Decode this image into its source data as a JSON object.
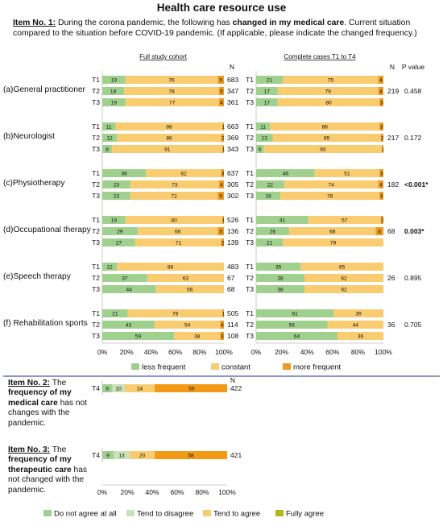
{
  "title": "Health care resource use",
  "item1": {
    "label": "Item No. 1:",
    "text_a": " During the corona pandemic, the following has ",
    "text_bold": "changed in my medical care",
    "text_b": ". Current situation compared to the situation before COVID-19 pandemic. (If applicable, please indicate the changed frequency.)"
  },
  "headers": {
    "left": "Full study cohort",
    "right": "Complete cases T1 to T4",
    "n": "N",
    "pvalue": "P value"
  },
  "x_ticks": [
    "0%",
    "20%",
    "40%",
    "60%",
    "80%",
    "100%"
  ],
  "legend1": [
    "less frequent",
    "constant",
    "more frequent"
  ],
  "item2": {
    "label": "Item No. 2:",
    "text_a": " The ",
    "text_bold": "frequency of my medical care",
    "text_b": " has not changes with the pandemic."
  },
  "item3": {
    "label": "Item No. 3:",
    "text_a": " The ",
    "text_bold": "frequency of my therapeutic care",
    "text_b": " has not changed with the pandemic."
  },
  "legend2": [
    "Do not agree at all",
    "Tend to disagree",
    "Tend to agree",
    "Fully agree"
  ],
  "colors": {
    "less": "#9fd08e",
    "constant": "#f9cc70",
    "more": "#ef9a1e",
    "disagree_full": "#9fd08e",
    "tend_disagree": "#c8e3b8",
    "tend_agree": "#f9cc70",
    "fully_agree": "#b3b818",
    "orange_strong": "#f39a14",
    "divider": "#4a5aa8"
  },
  "chart_data": [
    {
      "type": "bar",
      "orientation": "horizontal",
      "stacked": true,
      "title": "Full study cohort",
      "series_names": [
        "less frequent",
        "constant",
        "more frequent"
      ],
      "xlim": [
        0,
        100
      ],
      "groups": [
        {
          "label": "(a)General practitioner",
          "rows": [
            {
              "t": "T1",
              "values": [
                19,
                76,
                5
              ],
              "n": 683
            },
            {
              "t": "T2",
              "values": [
                18,
                78,
                5
              ],
              "n": 347
            },
            {
              "t": "T3",
              "values": [
                19,
                77,
                4
              ],
              "n": 361
            }
          ]
        },
        {
          "label": "(b)Neurologist",
          "rows": [
            {
              "t": "T1",
              "values": [
                11,
                88,
                1
              ],
              "n": 663
            },
            {
              "t": "T2",
              "values": [
                12,
                86,
                2
              ],
              "n": 369
            },
            {
              "t": "T3",
              "values": [
                8,
                91,
                1
              ],
              "n": 343
            }
          ]
        },
        {
          "label": "(c)Physiotherapy",
          "rows": [
            {
              "t": "T1",
              "values": [
                36,
                62,
                3
              ],
              "n": 637
            },
            {
              "t": "T2",
              "values": [
                23,
                73,
                4
              ],
              "n": 305
            },
            {
              "t": "T3",
              "values": [
                23,
                72,
                5
              ],
              "n": 302
            }
          ]
        },
        {
          "label": "(d)Occupational therapy",
          "rows": [
            {
              "t": "T1",
              "values": [
                19,
                80,
                1
              ],
              "n": 526
            },
            {
              "t": "T2",
              "values": [
                29,
                66,
                5
              ],
              "n": 136
            },
            {
              "t": "T3",
              "values": [
                27,
                71,
                2
              ],
              "n": 139
            }
          ]
        },
        {
          "label": "(e)Speech therapy",
          "rows": [
            {
              "t": "T1",
              "values": [
                12,
                88,
                0
              ],
              "n": 483
            },
            {
              "t": "T2",
              "values": [
                37,
                63,
                0
              ],
              "n": 67
            },
            {
              "t": "T3",
              "values": [
                44,
                56,
                0
              ],
              "n": 68
            }
          ]
        },
        {
          "label": "(f) Rehabilitation sports",
          "rows": [
            {
              "t": "T1",
              "values": [
                21,
                78,
                1
              ],
              "n": 505
            },
            {
              "t": "T2",
              "values": [
                43,
                54,
                4
              ],
              "n": 114
            },
            {
              "t": "T3",
              "values": [
                59,
                38,
                3
              ],
              "n": 108
            }
          ]
        }
      ]
    },
    {
      "type": "bar",
      "orientation": "horizontal",
      "stacked": true,
      "title": "Complete cases T1 to T4",
      "series_names": [
        "less frequent",
        "constant",
        "more frequent"
      ],
      "xlim": [
        0,
        100
      ],
      "groups": [
        {
          "label": "(a)General practitioner",
          "n": 219,
          "p": "0.458",
          "p_bold": false,
          "rows": [
            {
              "t": "T1",
              "values": [
                21,
                75,
                4
              ]
            },
            {
              "t": "T2",
              "values": [
                17,
                79,
                4
              ]
            },
            {
              "t": "T3",
              "values": [
                17,
                80,
                3
              ]
            }
          ]
        },
        {
          "label": "(b)Neurologist",
          "n": 217,
          "p": "0.172",
          "p_bold": false,
          "rows": [
            {
              "t": "T1",
              "values": [
                11,
                86,
                3
              ]
            },
            {
              "t": "T2",
              "values": [
                13,
                85,
                2
              ]
            },
            {
              "t": "T3",
              "values": [
                6,
                93,
                1
              ]
            }
          ]
        },
        {
          "label": "(c)Physiotherapy",
          "n": 182,
          "p": "<0.001*",
          "p_bold": true,
          "rows": [
            {
              "t": "T1",
              "values": [
                46,
                51,
                3
              ]
            },
            {
              "t": "T2",
              "values": [
                22,
                74,
                4
              ]
            },
            {
              "t": "T3",
              "values": [
                19,
                78,
                3
              ]
            }
          ]
        },
        {
          "label": "(d)Occupational therapy",
          "n": 68,
          "p": "0.003*",
          "p_bold": true,
          "rows": [
            {
              "t": "T1",
              "values": [
                41,
                57,
                2
              ]
            },
            {
              "t": "T2",
              "values": [
                26,
                68,
                6
              ]
            },
            {
              "t": "T3",
              "values": [
                21,
                79,
                0
              ]
            }
          ]
        },
        {
          "label": "(e)Speech therapy",
          "n": 26,
          "p": "0.895",
          "p_bold": false,
          "rows": [
            {
              "t": "T1",
              "values": [
                35,
                65,
                0
              ]
            },
            {
              "t": "T2",
              "values": [
                38,
                62,
                0
              ]
            },
            {
              "t": "T3",
              "values": [
                38,
                62,
                0
              ]
            }
          ]
        },
        {
          "label": "(f) Rehabilitation sports",
          "n": 36,
          "p": "0.705",
          "p_bold": false,
          "rows": [
            {
              "t": "T1",
              "values": [
                61,
                39,
                0
              ]
            },
            {
              "t": "T2",
              "values": [
                56,
                44,
                0
              ]
            },
            {
              "t": "T3",
              "values": [
                64,
                36,
                0
              ]
            }
          ]
        }
      ]
    },
    {
      "type": "bar",
      "orientation": "horizontal",
      "stacked": true,
      "title": "",
      "series_names": [
        "Do not agree at all",
        "Tend to disagree",
        "Tend to agree",
        "Fully agree"
      ],
      "xlim": [
        0,
        100
      ],
      "rows": [
        {
          "item": "Item No. 2",
          "t": "T4",
          "values": [
            8,
            10,
            24,
            59
          ],
          "n": 422
        },
        {
          "item": "Item No. 3",
          "t": "T4",
          "values": [
            9,
            13,
            20,
            58
          ],
          "n": 421
        }
      ]
    }
  ]
}
